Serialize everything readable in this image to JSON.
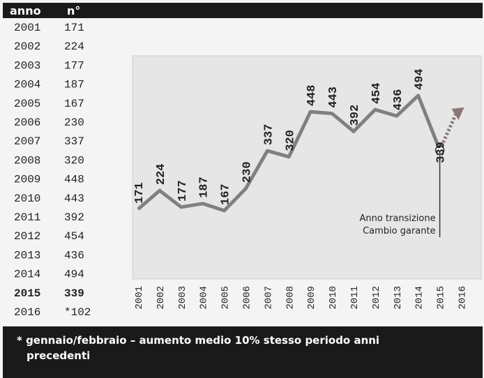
{
  "table": {
    "header": [
      "anno",
      "n°"
    ],
    "rows": [
      [
        "2001",
        "171"
      ],
      [
        "2002",
        "224"
      ],
      [
        "2003",
        "177"
      ],
      [
        "2004",
        "187"
      ],
      [
        "2005",
        "167"
      ],
      [
        "2006",
        "230"
      ],
      [
        "2007",
        "337"
      ],
      [
        "2008",
        "320"
      ],
      [
        "2009",
        "448"
      ],
      [
        "2010",
        "443"
      ],
      [
        "2011",
        "392"
      ],
      [
        "2012",
        "454"
      ],
      [
        "2013",
        "436"
      ],
      [
        "2014",
        "494"
      ],
      [
        "2015",
        "339"
      ],
      [
        "2016",
        "*102"
      ]
    ]
  },
  "chart_data": {
    "type": "line",
    "categories": [
      "2001",
      "2002",
      "2003",
      "2004",
      "2005",
      "2006",
      "2007",
      "2008",
      "2009",
      "2010",
      "2011",
      "2012",
      "2013",
      "2014",
      "2015",
      "2016"
    ],
    "values": [
      171,
      224,
      177,
      187,
      167,
      230,
      337,
      320,
      448,
      443,
      392,
      454,
      436,
      494,
      339,
      null
    ],
    "color": "#808080",
    "annotations": [
      "Anno transizione",
      "Cambio garante"
    ]
  },
  "footnote": "* gennaio/febbraio – aumento medio 10% stesso periodo anni precedenti"
}
